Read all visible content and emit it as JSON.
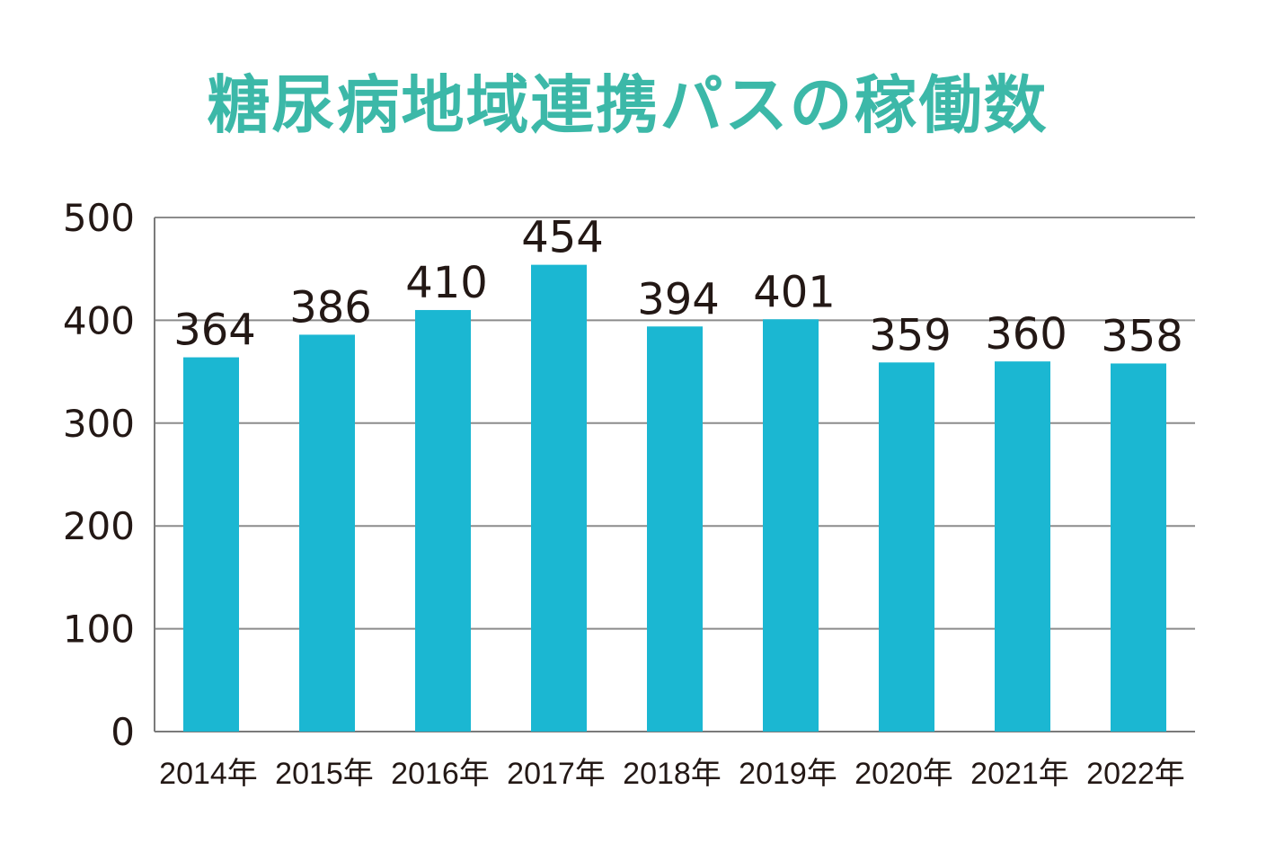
{
  "chart_data": {
    "type": "bar",
    "title": "糖尿病地域連携パスの稼働数",
    "xlabel": "",
    "ylabel": "",
    "categories": [
      "2014年",
      "2015年",
      "2016年",
      "2017年",
      "2018年",
      "2019年",
      "2020年",
      "2021年",
      "2022年"
    ],
    "values": [
      364,
      386,
      410,
      454,
      394,
      401,
      359,
      360,
      358
    ],
    "ylim": [
      0,
      500
    ],
    "yticks": [
      "0",
      "100",
      "200",
      "300",
      "400",
      "500"
    ],
    "grid": true,
    "legend": "none"
  },
  "colors": {
    "title": "#3cb8a8",
    "bar": "#1bb7d2",
    "grid": "#8c8c8c",
    "axis": "#7a7a7a",
    "text": "#231815"
  }
}
